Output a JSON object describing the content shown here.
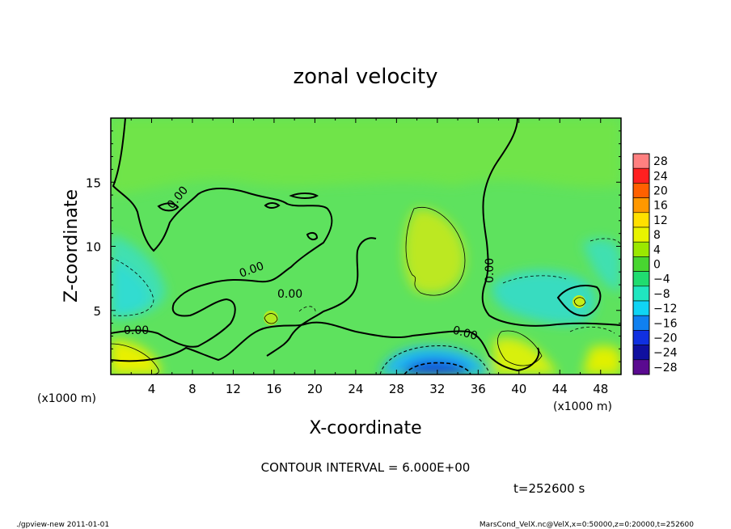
{
  "chart_data": {
    "type": "heatmap",
    "title": "zonal velocity",
    "xlabel": "X-coordinate",
    "ylabel": "Z-coordinate",
    "x_unit_label": "(x1000 m)",
    "y_unit_label": "(x1000 m)",
    "xlim": [
      0,
      50
    ],
    "ylim": [
      0,
      20
    ],
    "x_ticks": [
      4,
      8,
      12,
      16,
      20,
      24,
      28,
      32,
      36,
      40,
      44,
      48
    ],
    "x_tick_labels": [
      "4",
      "8",
      "12",
      "16",
      "20",
      "24",
      "28",
      "32",
      "36",
      "40",
      "44",
      "48"
    ],
    "y_ticks": [
      5,
      10,
      15
    ],
    "y_tick_labels": [
      "5",
      "10",
      "15"
    ],
    "colorbar": {
      "levels": [
        28,
        24,
        20,
        16,
        12,
        8,
        4,
        0,
        -4,
        -8,
        -12,
        -16,
        -20,
        -24,
        -28
      ],
      "labels": [
        "28",
        "24",
        "20",
        "16",
        "12",
        "8",
        "4",
        "0",
        "−4",
        "−8",
        "−12",
        "−16",
        "−20",
        "−24",
        "−28"
      ],
      "colors": [
        "#ff8080",
        "#ff2020",
        "#ff6000",
        "#ff9800",
        "#ffe000",
        "#e8f400",
        "#9be800",
        "#48d630",
        "#20dc70",
        "#20e6c0",
        "#10d4f4",
        "#1080f0",
        "#1030e0",
        "#1010a0",
        "#5a0a90"
      ]
    },
    "contour_labels": [
      "0.00",
      "0.00",
      "0.00",
      "0.00",
      "0.00",
      "0.00"
    ],
    "contour_interval_text": "CONTOUR INTERVAL = 6.000E+00",
    "time_text": "t=252600 s",
    "grid": false
  },
  "footer": {
    "left": "./gpview-new  2011-01-01",
    "right": "MarsCond_VelX.nc@VelX,x=0:50000,z=0:20000,t=252600"
  }
}
